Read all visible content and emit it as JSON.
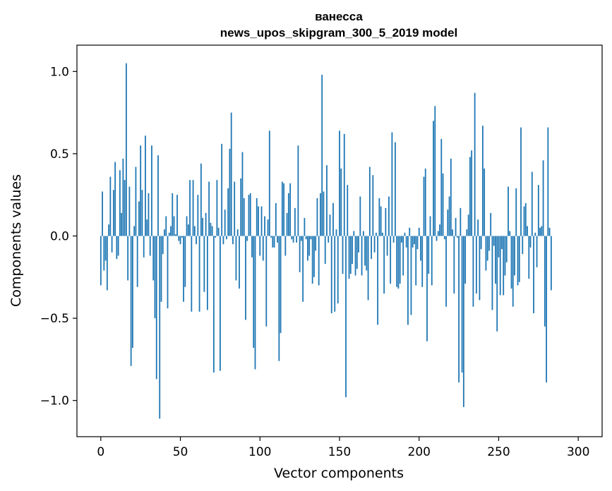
{
  "chart_data": {
    "type": "bar",
    "title_line1": "ванесса",
    "title_line2": "news_upos_skipgram_300_5_2019 model",
    "xlabel": "Vector components",
    "ylabel": "Components values",
    "xlim": [
      -15,
      315
    ],
    "ylim": [
      -1.22,
      1.16
    ],
    "xticks": [
      0,
      50,
      100,
      150,
      200,
      250,
      300
    ],
    "xtick_labels": [
      "0",
      "50",
      "100",
      "150",
      "200",
      "250",
      "300"
    ],
    "yticks": [
      -1.0,
      -0.5,
      0.0,
      0.5,
      1.0
    ],
    "ytick_labels": [
      "−1.0",
      "−0.5",
      "0.0",
      "0.5",
      "1.0"
    ],
    "bar_color": "#1f77b4",
    "grid": false,
    "values": [
      -0.3,
      0.27,
      -0.21,
      -0.15,
      -0.33,
      0.07,
      0.36,
      -0.1,
      0.28,
      0.45,
      -0.14,
      -0.12,
      0.4,
      0.14,
      0.47,
      0.34,
      1.05,
      -0.27,
      0.3,
      -0.79,
      -0.68,
      0.06,
      0.42,
      -0.31,
      0.21,
      0.55,
      0.28,
      -0.13,
      0.61,
      0.1,
      0.26,
      -0.12,
      0.55,
      -0.27,
      -0.5,
      -0.87,
      0.49,
      -1.11,
      -0.4,
      -0.11,
      0.04,
      0.12,
      -0.44,
      0.02,
      0.06,
      0.26,
      0.12,
      0.01,
      0.25,
      -0.03,
      -0.05,
      -0.01,
      -0.4,
      -0.31,
      0.12,
      0.07,
      0.34,
      -0.46,
      0.34,
      0.06,
      -0.05,
      0.25,
      -0.46,
      0.44,
      0.11,
      -0.34,
      0.14,
      -0.45,
      0.33,
      0.08,
      0.06,
      -0.83,
      -0.01,
      0.34,
      0.05,
      -0.82,
      0.56,
      -0.05,
      0.16,
      -0.02,
      0.29,
      0.53,
      0.75,
      -0.05,
      0.33,
      -0.27,
      0.04,
      -0.32,
      0.35,
      0.51,
      0.23,
      -0.51,
      -0.03,
      0.25,
      0.26,
      -0.13,
      -0.68,
      -0.81,
      0.23,
      0.18,
      -0.12,
      0.18,
      -0.15,
      0.12,
      -0.55,
      0.1,
      0.64,
      -0.01,
      -0.07,
      -0.07,
      0.2,
      -0.04,
      -0.76,
      -0.59,
      0.33,
      0.32,
      -0.12,
      0.14,
      0.26,
      0.32,
      -0.02,
      -0.04,
      0.17,
      -0.04,
      0.55,
      -0.22,
      -0.03,
      -0.4,
      0.11,
      -0.02,
      -0.15,
      -0.12,
      -0.02,
      -0.29,
      -0.25,
      -0.09,
      0.23,
      -0.3,
      0.26,
      0.98,
      0.27,
      -0.17,
      0.43,
      -0.04,
      0.13,
      -0.47,
      0.2,
      -0.46,
      0.04,
      -0.41,
      0.64,
      0.41,
      -0.23,
      0.62,
      -0.98,
      0.31,
      -0.26,
      -0.23,
      -0.17,
      0.03,
      -0.24,
      -0.2,
      -0.1,
      0.24,
      -0.24,
      0.03,
      -0.18,
      -0.21,
      -0.39,
      0.42,
      -0.14,
      0.37,
      -0.1,
      0.02,
      -0.54,
      0.23,
      0.18,
      0.02,
      -0.35,
      0.17,
      -0.12,
      0.24,
      -0.29,
      0.63,
      -0.04,
      0.57,
      -0.31,
      -0.32,
      -0.29,
      -0.04,
      -0.24,
      0.02,
      -0.07,
      -0.54,
      0.05,
      -0.48,
      -0.07,
      -0.05,
      -0.3,
      -0.08,
      0.05,
      -0.15,
      -0.31,
      0.36,
      0.41,
      -0.64,
      -0.23,
      0.12,
      -0.3,
      0.7,
      0.79,
      -0.03,
      0.03,
      0.07,
      0.59,
      0.38,
      -0.02,
      -0.43,
      0.16,
      0.24,
      0.47,
      0.04,
      -0.35,
      0.11,
      -0.01,
      -0.89,
      0.17,
      -0.83,
      -1.04,
      -0.29,
      0.04,
      0.13,
      0.48,
      0.52,
      -0.43,
      0.87,
      -0.35,
      0.1,
      -0.39,
      -0.08,
      0.67,
      0.41,
      -0.21,
      -0.15,
      -0.09,
      0.14,
      -0.45,
      -0.06,
      -0.29,
      -0.58,
      -0.13,
      -0.36,
      -0.08,
      -0.36,
      -0.24,
      -0.16,
      0.3,
      0.03,
      -0.32,
      -0.43,
      -0.24,
      0.29,
      -0.3,
      -0.28,
      0.66,
      -0.11,
      0.18,
      0.2,
      0.06,
      -0.26,
      -0.07,
      0.39,
      -0.47,
      0.02,
      -0.19,
      0.31,
      0.05,
      0.06,
      0.46,
      -0.55,
      -0.89,
      0.66,
      0.05,
      -0.33
    ]
  }
}
